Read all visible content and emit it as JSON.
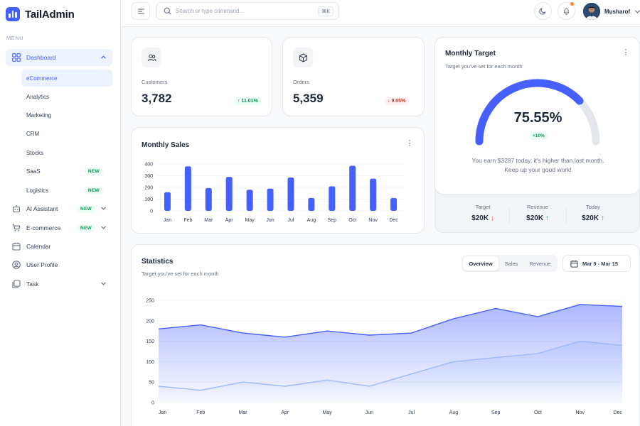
{
  "brand": {
    "name": "TailAdmin"
  },
  "sidebar": {
    "menu_label": "MENU",
    "dashboard": "Dashboard",
    "sub_items": [
      {
        "label": "eCommerce",
        "active": true
      },
      {
        "label": "Analytics"
      },
      {
        "label": "Marketing"
      },
      {
        "label": "CRM"
      },
      {
        "label": "Stocks"
      },
      {
        "label": "SaaS",
        "badge": "NEW"
      },
      {
        "label": "Logistics",
        "badge": "NEW"
      }
    ],
    "items": [
      {
        "label": "AI Assistant",
        "badge": "NEW",
        "icon": "robot-icon"
      },
      {
        "label": "E-commerce",
        "badge": "NEW",
        "icon": "cart-icon"
      },
      {
        "label": "Calendar",
        "icon": "calendar-icon"
      },
      {
        "label": "User Profile",
        "icon": "user-circle-icon"
      },
      {
        "label": "Task",
        "icon": "task-icon"
      }
    ]
  },
  "header": {
    "search_placeholder": "Search or type command...",
    "shortcut": "⌘K",
    "user_name": "Musharof"
  },
  "metrics": {
    "customers": {
      "label": "Customers",
      "value": "3,782",
      "change": "↑ 11.01%"
    },
    "orders": {
      "label": "Orders",
      "value": "5,359",
      "change": "↓ 9.05%"
    }
  },
  "monthly_sales": {
    "title": "Monthly Sales",
    "chart_data": {
      "type": "bar",
      "categories": [
        "Jan",
        "Feb",
        "Mar",
        "Apr",
        "May",
        "Jun",
        "Jul",
        "Aug",
        "Sep",
        "Oct",
        "Nov",
        "Dec"
      ],
      "values": [
        160,
        380,
        195,
        290,
        180,
        190,
        285,
        110,
        210,
        385,
        275,
        110
      ],
      "yticks": [
        "400",
        "300",
        "200",
        "100",
        "0"
      ],
      "ylim": [
        0,
        400
      ]
    }
  },
  "monthly_target": {
    "title": "Monthly Target",
    "subtitle": "Target you've set for each month",
    "percent": "75.55%",
    "percent_value": 75.55,
    "change": "+10%",
    "message_line1": "You earn $3287 today, it's higher than last month.",
    "message_line2": "Keep up your good work!",
    "stats": [
      {
        "label": "Target",
        "value": "$20K",
        "arrow": "↓",
        "dir": "down"
      },
      {
        "label": "Revenue",
        "value": "$20K",
        "arrow": "↑",
        "dir": "up"
      },
      {
        "label": "Today",
        "value": "$20K",
        "arrow": "↑",
        "dir": "up"
      }
    ]
  },
  "statistics": {
    "title": "Statistics",
    "subtitle": "Target you've set for each month",
    "tabs": [
      "Overview",
      "Sales",
      "Revenue"
    ],
    "date_range": "Mar 9 - Mar 15",
    "chart_data": {
      "type": "area",
      "categories": [
        "Jan",
        "Feb",
        "Mar",
        "Apr",
        "May",
        "Jun",
        "Jul",
        "Aug",
        "Sep",
        "Oct",
        "Nov",
        "Dec"
      ],
      "series": [
        {
          "name": "Sales",
          "values": [
            180,
            190,
            170,
            160,
            175,
            165,
            170,
            205,
            230,
            210,
            240,
            235
          ]
        },
        {
          "name": "Revenue",
          "values": [
            40,
            30,
            50,
            40,
            55,
            40,
            70,
            100,
            110,
            120,
            150,
            140
          ]
        }
      ],
      "yticks": [
        "250",
        "200",
        "150",
        "100",
        "50",
        "0"
      ],
      "ylim": [
        0,
        250
      ]
    }
  }
}
